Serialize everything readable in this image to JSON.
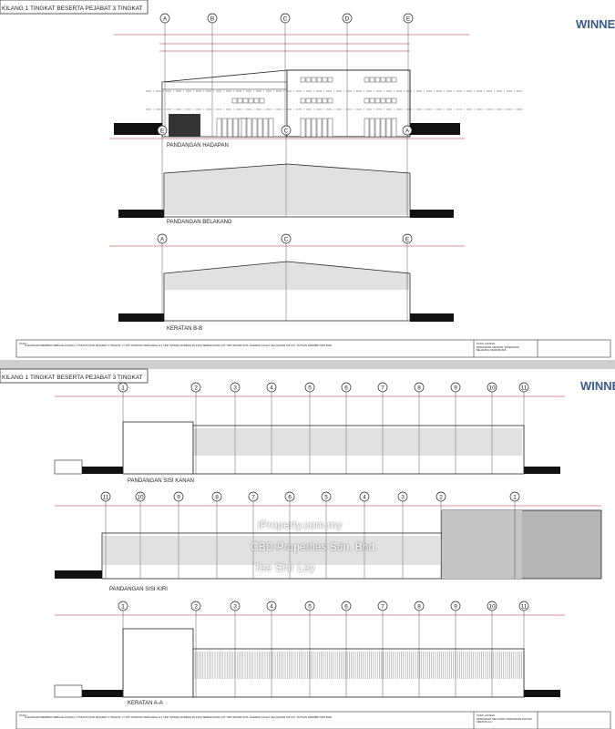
{
  "sheets": [
    {
      "header": "KILANG 1 TINGKAT BESERTA PEJABAT 3 TINGKAT",
      "brand": "WINNE",
      "views": [
        {
          "label": "PANDANGAN HADAPAN",
          "grid": [
            "A",
            "B",
            "C",
            "D",
            "E"
          ]
        },
        {
          "label": "PANDANGAN BELAKANG",
          "grid": [
            "E",
            "C",
            "A"
          ]
        },
        {
          "label": "KERATAN B-B",
          "grid": [
            "A",
            "C",
            "E"
          ]
        }
      ],
      "title_block": {
        "tajuk": "TAJUK:",
        "description": "CADANGAN MEMBINA SEBUAH KILANG 1 TINGKAT DAN PEJABAT 3 TINGKAT, 1 UNIT PONDOK PENGAWAL & 1 UNIT RUMAH SAMPAH DI ATAS SEBAHAGIAN LOT 7057 MUKIM IJOK, DAERAH KUALA SELANGOR UNTUK: TETUAN WINNBIZ SDN BHD",
        "tajuk_lukisan": "TAJUK LUKISAN:",
        "drawing_title": "PANDANGAN HADAPAN, PANDANGAN BELAKANG, KERATAN B-B"
      }
    },
    {
      "header": "KILANG 1 TINGKAT BESERTA PEJABAT 3 TINGKAT",
      "brand": "WINNE",
      "views": [
        {
          "label": "PANDANGAN SISI KANAN",
          "grid": [
            "1",
            "2",
            "3",
            "4",
            "5",
            "6",
            "7",
            "8",
            "9",
            "10",
            "11"
          ]
        },
        {
          "label": "PANDANGAN SISI KIRI",
          "grid": [
            "11",
            "10",
            "9",
            "8",
            "7",
            "6",
            "5",
            "4",
            "3",
            "2",
            "1"
          ]
        },
        {
          "label": "KERATAN A-A",
          "grid": [
            "1",
            "2",
            "3",
            "4",
            "5",
            "6",
            "7",
            "8",
            "9",
            "10",
            "11"
          ]
        }
      ],
      "title_block": {
        "tajuk": "TAJUK:",
        "description": "CADANGAN MEMBINA SEBUAH KILANG 1 TINGKAT DAN PEJABAT 3 TINGKAT, 1 UNIT PONDOK PENGAWAL & 1 UNIT RUMAH SAMPAH DI ATAS SEBAHAGIAN LOT 7057 MUKIM IJOK, DAERAH KUALA SELANGOR UNTUK: TETUAN WINNBIZ SDN BHD",
        "tajuk_lukisan": "TAJUK LUKISAN:",
        "drawing_title": "PANDANGAN SISI KANAN, PANDANGAN SISI KIRI, KERATAN A-A"
      }
    }
  ],
  "watermark": {
    "site": "iProperty.com.my",
    "agency": "CBD Properties Sdn. Bhd.",
    "agent": "Tee Shir Ley"
  },
  "colors": {
    "line": "#222222",
    "brand": "#3a5a8c",
    "separator": "#c8c8c8",
    "dimension": "#b03030"
  }
}
